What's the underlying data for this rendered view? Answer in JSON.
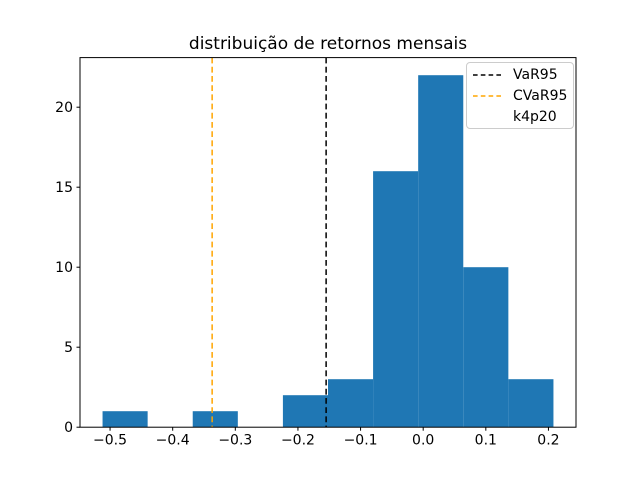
{
  "chart_data": {
    "type": "histogram",
    "title": "distribuição de retornos mensais",
    "xlabel": "",
    "ylabel": "",
    "bin_edges": [
      -0.512,
      -0.44,
      -0.368,
      -0.296,
      -0.224,
      -0.152,
      -0.08,
      -0.008,
      0.064,
      0.136,
      0.208
    ],
    "counts": [
      1,
      0,
      1,
      0,
      2,
      3,
      16,
      22,
      10,
      3
    ],
    "vlines": [
      {
        "label": "VaR95",
        "x": -0.155,
        "color": "#000000",
        "style": "dashed"
      },
      {
        "label": "CVaR95",
        "x": -0.337,
        "color": "#ffa500",
        "style": "dashed"
      }
    ],
    "xticks": [
      -0.5,
      -0.4,
      -0.3,
      -0.2,
      -0.1,
      0.0,
      0.1,
      0.2
    ],
    "xtick_labels": [
      "−0.5",
      "−0.4",
      "−0.3",
      "−0.2",
      "−0.1",
      "0.0",
      "0.1",
      "0.2"
    ],
    "yticks": [
      0,
      5,
      10,
      15,
      20
    ],
    "ytick_labels": [
      "0",
      "5",
      "10",
      "15",
      "20"
    ],
    "xlim": [
      -0.548,
      0.244
    ],
    "ylim": [
      0,
      23.1
    ],
    "grid": false,
    "colors": {
      "bar": "#1f77b4",
      "axes": "#000000",
      "tick_text": "#000000"
    },
    "legend": {
      "position": "upper right",
      "entries": [
        {
          "label": "VaR95",
          "handle": "dashed-line",
          "color": "#000000"
        },
        {
          "label": "CVaR95",
          "handle": "dashed-line",
          "color": "#ffa500"
        },
        {
          "label": "k4p20",
          "handle": "none",
          "color": null
        }
      ]
    }
  }
}
